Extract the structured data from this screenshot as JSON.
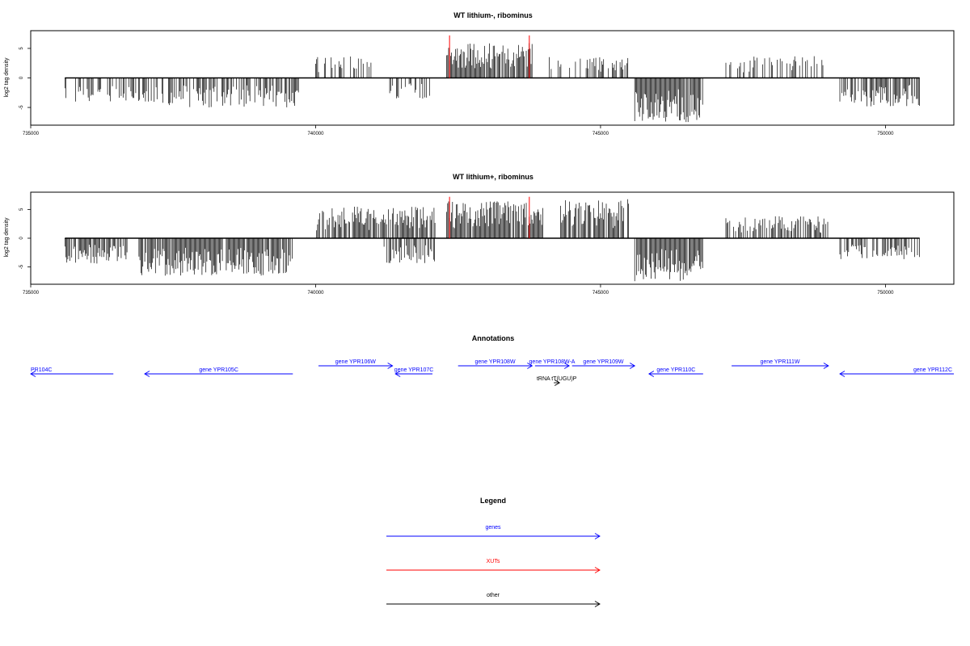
{
  "colors": {
    "gene": "#0000ff",
    "xut": "#ff0000",
    "other": "#000000",
    "signal": "#000000",
    "marker": "#ff0000"
  },
  "chart_data": [
    {
      "type": "bar",
      "title": "WT lithium-, ribominus",
      "ylabel": "log2 tag density",
      "xlim": [
        735000,
        751200
      ],
      "ylim": [
        -8,
        8
      ],
      "x_ticks": [
        "735000",
        "740000",
        "745000",
        "750000"
      ],
      "y_ticks": [
        "-5",
        "0",
        "5"
      ],
      "segments": [
        {
          "x0": 735600,
          "x1": 737400,
          "sign": -1,
          "max": 4.2,
          "density": 0.45
        },
        {
          "x0": 737400,
          "x1": 739700,
          "sign": -1,
          "max": 5.0,
          "density": 0.65
        },
        {
          "x0": 740000,
          "x1": 741000,
          "sign": 1,
          "max": 3.8,
          "density": 0.35
        },
        {
          "x0": 741300,
          "x1": 742000,
          "sign": -1,
          "max": 3.5,
          "density": 0.4
        },
        {
          "x0": 742300,
          "x1": 743800,
          "sign": 1,
          "max": 6.0,
          "density": 0.9
        },
        {
          "x0": 744100,
          "x1": 745500,
          "sign": 1,
          "max": 3.6,
          "density": 0.45
        },
        {
          "x0": 745600,
          "x1": 746800,
          "sign": -1,
          "max": 7.5,
          "density": 0.95
        },
        {
          "x0": 747200,
          "x1": 749000,
          "sign": 1,
          "max": 3.8,
          "density": 0.35
        },
        {
          "x0": 749200,
          "x1": 750600,
          "sign": -1,
          "max": 4.8,
          "density": 0.7
        }
      ],
      "markers": [
        742350,
        743750
      ]
    },
    {
      "type": "bar",
      "title": "WT lithium+, ribominus",
      "ylabel": "log2 tag density",
      "xlim": [
        735000,
        751200
      ],
      "ylim": [
        -8,
        8
      ],
      "x_ticks": [
        "735000",
        "740000",
        "745000",
        "750000"
      ],
      "y_ticks": [
        "-5",
        "0",
        "5"
      ],
      "segments": [
        {
          "x0": 735600,
          "x1": 736700,
          "sign": -1,
          "max": 4.5,
          "density": 0.8
        },
        {
          "x0": 736900,
          "x1": 739600,
          "sign": -1,
          "max": 6.5,
          "density": 0.95
        },
        {
          "x0": 740000,
          "x1": 742100,
          "sign": 1,
          "max": 5.5,
          "density": 0.75
        },
        {
          "x0": 741200,
          "x1": 742100,
          "sign": -1,
          "max": 4.5,
          "density": 0.6
        },
        {
          "x0": 742300,
          "x1": 744000,
          "sign": 1,
          "max": 6.5,
          "density": 0.95
        },
        {
          "x0": 744300,
          "x1": 745500,
          "sign": 1,
          "max": 6.8,
          "density": 0.85
        },
        {
          "x0": 745600,
          "x1": 746800,
          "sign": -1,
          "max": 7.5,
          "density": 0.95
        },
        {
          "x0": 747200,
          "x1": 749000,
          "sign": 1,
          "max": 3.8,
          "density": 0.65
        },
        {
          "x0": 749200,
          "x1": 750600,
          "sign": -1,
          "max": 3.8,
          "density": 0.5
        }
      ],
      "markers": [
        742350,
        743750
      ]
    },
    {
      "type": "other",
      "title": "Annotations",
      "xlim": [
        735000,
        751200
      ],
      "features": [
        {
          "label": "PR104C",
          "kind": "gene",
          "strand": "-",
          "x0": 735000,
          "x1": 736450,
          "row": 1,
          "label_pos": "left"
        },
        {
          "label": "gene YPR105C",
          "kind": "gene",
          "strand": "-",
          "x0": 737000,
          "x1": 739600,
          "row": 1
        },
        {
          "label": "gene YPR106W",
          "kind": "gene",
          "strand": "+",
          "x0": 740050,
          "x1": 741350,
          "row": 0
        },
        {
          "label": "gene YPR107C",
          "kind": "gene",
          "strand": "-",
          "x0": 741400,
          "x1": 742050,
          "row": 1
        },
        {
          "label": "gene YPR108W",
          "kind": "gene",
          "strand": "+",
          "x0": 742500,
          "x1": 743800,
          "row": 0
        },
        {
          "label": "gene YPR108W-A",
          "kind": "gene",
          "strand": "+",
          "x0": 743850,
          "x1": 744450,
          "row": 0
        },
        {
          "label": "gene YPR109W",
          "kind": "gene",
          "strand": "+",
          "x0": 744500,
          "x1": 745600,
          "row": 0
        },
        {
          "label": "gene YPR110C",
          "kind": "gene",
          "strand": "-",
          "x0": 745850,
          "x1": 746800,
          "row": 1
        },
        {
          "label": "gene YPR111W",
          "kind": "gene",
          "strand": "+",
          "x0": 747300,
          "x1": 749000,
          "row": 0
        },
        {
          "label": "gene YPR112C",
          "kind": "gene",
          "strand": "-",
          "x0": 749200,
          "x1": 751200,
          "row": 1,
          "label_pos": "right"
        },
        {
          "label": "tRNA tT(UGU)P",
          "kind": "other",
          "strand": "+",
          "x0": 744180,
          "x1": 744280,
          "row": 2
        }
      ]
    }
  ],
  "legend": {
    "title": "Legend",
    "items": [
      {
        "label": "genes",
        "kind": "gene"
      },
      {
        "label": "XUTs",
        "kind": "xut"
      },
      {
        "label": "other",
        "kind": "other"
      }
    ]
  }
}
